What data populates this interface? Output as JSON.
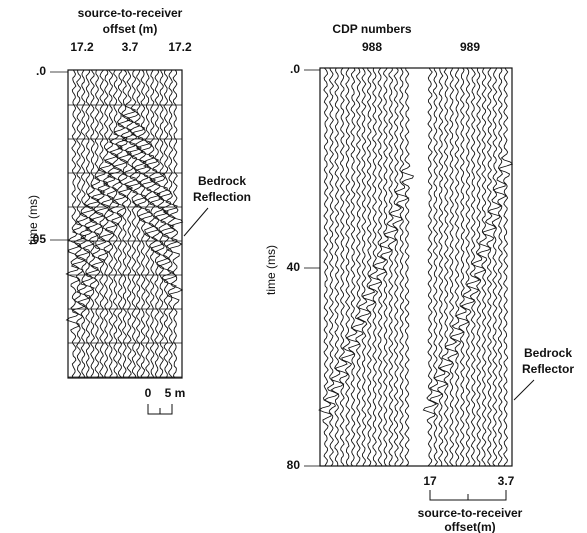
{
  "left_panel": {
    "title_line1": "source-to-receiver",
    "title_line2": "offset (m)",
    "offsets": [
      "17.2",
      "3.7",
      "17.2"
    ],
    "time_labels": [
      ".0",
      ".05"
    ],
    "axis_label": "time (ms)",
    "annotation_line1": "Bedrock",
    "annotation_line2": "Reflection",
    "scale_labels": [
      "0",
      "5 m"
    ]
  },
  "right_panel": {
    "title": "CDP numbers",
    "cdps": [
      "988",
      "989"
    ],
    "time_labels": [
      ".0",
      "40",
      "80"
    ],
    "axis_label": "time (ms)",
    "annotation_line1": "Bedrock",
    "annotation_line2": "Reflector",
    "offsets": [
      "17",
      "3.7"
    ],
    "bottom_line1": "source-to-receiver",
    "bottom_line2": "offset(m)"
  }
}
